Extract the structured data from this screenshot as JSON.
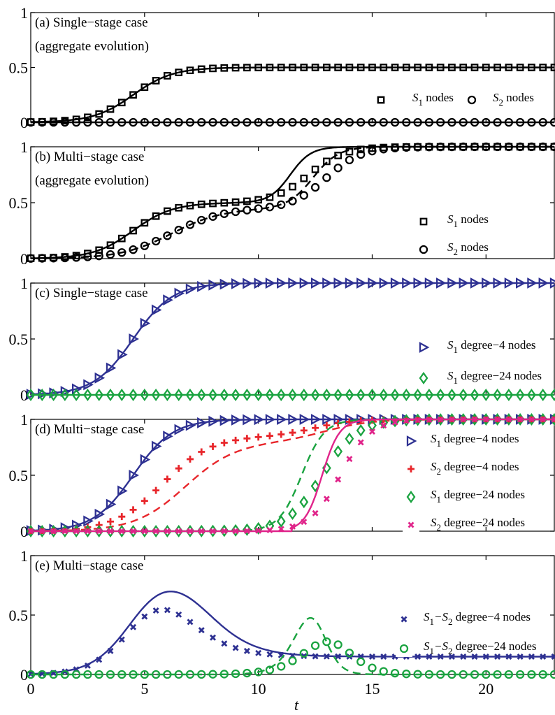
{
  "xlabel": "t",
  "xticks": [
    "0",
    "5",
    "10",
    "15",
    "20"
  ],
  "chart_data": [
    {
      "type": "line",
      "panel": "a",
      "title_lines": [
        "(a) Single−stage case",
        "(aggregate evolution)"
      ],
      "ylim": [
        0,
        1
      ],
      "xlim": [
        0,
        23
      ],
      "yticks": [
        "0",
        "0.5",
        "1"
      ],
      "legend": [
        {
          "name": "S1 nodes",
          "sym": "S",
          "sub": "1",
          "rest": " nodes",
          "marker": "square",
          "color": "#000000"
        },
        {
          "name": "S2 nodes",
          "sym": "S",
          "sub": "2",
          "rest": " nodes",
          "marker": "circle",
          "color": "#000000"
        }
      ],
      "series": [
        {
          "name": "S1 nodes",
          "marker": "square",
          "color": "#000000",
          "line": "solid",
          "fn": "logistic",
          "L": 0.5,
          "k": 1.15,
          "t0": 4.5
        },
        {
          "name": "S2 nodes",
          "marker": "circle",
          "color": "#000000",
          "line": "solid",
          "fn": "constant",
          "c": 0
        }
      ]
    },
    {
      "type": "line",
      "panel": "b",
      "title_lines": [
        "(b) Multi−stage case",
        "(aggregate evolution)"
      ],
      "ylim": [
        0,
        1
      ],
      "xlim": [
        0,
        23
      ],
      "yticks": [
        "0",
        "0.5",
        "1"
      ],
      "legend": [
        {
          "name": "S1 nodes",
          "sym": "S",
          "sub": "1",
          "rest": " nodes",
          "marker": "square",
          "color": "#000000"
        },
        {
          "name": "S2 nodes",
          "sym": "S",
          "sub": "2",
          "rest": " nodes",
          "marker": "circle",
          "color": "#000000"
        }
      ],
      "series": [
        {
          "name": "S1 nodes",
          "marker": "square",
          "color": "#000000",
          "line": "solid",
          "fn": "double",
          "A": 0.5,
          "k1": 1.15,
          "t1": 4.5,
          "B": 0.5,
          "k2": 1.3,
          "t2": 12.2,
          "line_k2": 2.2,
          "line_t2": 11.4
        },
        {
          "name": "S2 nodes",
          "marker": "circle",
          "color": "#000000",
          "line": "dashed",
          "fn": "double",
          "A": 0.45,
          "k1": 0.9,
          "t1": 6.2,
          "B": 0.55,
          "k2": 1.3,
          "t2": 13.0,
          "line_k2": 1.8,
          "line_t2": 12.4
        }
      ]
    },
    {
      "type": "line",
      "panel": "c",
      "title_lines": [
        "(c) Single−stage case"
      ],
      "ylim": [
        0,
        1
      ],
      "xlim": [
        0,
        23
      ],
      "yticks": [
        "0",
        "0.5",
        "1"
      ],
      "legend": [
        {
          "name": "S1 degree−4 nodes",
          "sym": "S",
          "sub": "1",
          "rest": " degree−4 nodes",
          "marker": "triangle",
          "color": "#2e3192"
        },
        {
          "name": "S1 degree−24 nodes",
          "sym": "S",
          "sub": "1",
          "rest": " degree−24 nodes",
          "marker": "diamond",
          "color": "#1aa340"
        }
      ],
      "series": [
        {
          "name": "S1 degree−4 nodes",
          "marker": "triangle",
          "color": "#2e3192",
          "line": "solid",
          "fn": "logistic",
          "L": 1.0,
          "k": 1.15,
          "t0": 4.5
        },
        {
          "name": "S1 degree−24 nodes",
          "marker": "diamond",
          "color": "#1aa340",
          "line": "solid",
          "fn": "constant",
          "c": 0
        }
      ]
    },
    {
      "type": "line",
      "panel": "d",
      "title_lines": [
        "(d) Multi−stage case"
      ],
      "ylim": [
        0,
        1
      ],
      "xlim": [
        0,
        23
      ],
      "yticks": [
        "0",
        "0.5",
        "1"
      ],
      "legend": [
        {
          "name": "S1 degree−4 nodes",
          "sym": "S",
          "sub": "1",
          "rest": " degree−4 nodes",
          "marker": "triangle",
          "color": "#2e3192"
        },
        {
          "name": "S2 degree−4 nodes",
          "sym": "S",
          "sub": "2",
          "rest": " degree−4 nodes",
          "marker": "plus",
          "color": "#e8262b"
        },
        {
          "name": "S1 degree−24 nodes",
          "sym": "S",
          "sub": "1",
          "rest": " degree−24 nodes",
          "marker": "diamond",
          "color": "#1aa340"
        },
        {
          "name": "S2 degree−24 nodes",
          "sym": "S",
          "sub": "2",
          "rest": " degree−24 nodes",
          "marker": "cross",
          "color": "#e0248a"
        }
      ],
      "series": [
        {
          "name": "S1 degree−4 nodes",
          "marker": "triangle",
          "color": "#2e3192",
          "line": "solid",
          "fn": "logistic",
          "L": 1.0,
          "k": 1.15,
          "t0": 4.5
        },
        {
          "name": "S2 degree−4 nodes",
          "marker": "plus",
          "color": "#e8262b",
          "line": "dashed",
          "fn": "double",
          "A": 0.85,
          "k1": 0.95,
          "t1": 5.8,
          "B": 0.15,
          "k2": 1.2,
          "t2": 12.5,
          "line_A": 0.8,
          "line_k1": 0.9,
          "line_t1": 6.8,
          "line_B": 0.2,
          "line_k2": 1.0,
          "line_t2": 13.0
        },
        {
          "name": "S1 degree−24 nodes",
          "marker": "diamond",
          "color": "#1aa340",
          "line": "dashed",
          "fn": "logistic",
          "L": 1.0,
          "k": 1.3,
          "t0": 12.8,
          "line_L": 1.0,
          "line_k": 2.0,
          "line_t0": 11.9
        },
        {
          "name": "S2 degree−24 nodes",
          "marker": "cross",
          "color": "#e0248a",
          "line": "solid",
          "fn": "logistic",
          "L": 1.0,
          "k": 1.5,
          "t0": 13.6,
          "line_L": 1.0,
          "line_k": 2.6,
          "line_t0": 12.8,
          "min_t": 11.5
        }
      ]
    },
    {
      "type": "line",
      "panel": "e",
      "title_lines": [
        "(e) Multi−stage case"
      ],
      "ylim": [
        0,
        1
      ],
      "xlim": [
        0,
        23
      ],
      "yticks": [
        "0",
        "0.5",
        "1"
      ],
      "legend": [
        {
          "name": "S1−S2 degree−4 nodes",
          "sym": "S",
          "sub": "1",
          "mid": "−S",
          "sub2": "2",
          "rest": " degree−4 nodes",
          "marker": "cross",
          "color": "#2e3192"
        },
        {
          "name": "S1−S2 degree−24 nodes",
          "sym": "S",
          "sub": "1",
          "mid": "−S",
          "sub2": "2",
          "rest": " degree−24 nodes",
          "marker": "circle",
          "color": "#1aa340"
        }
      ],
      "series": [
        {
          "name": "S1−S2 degree−4 nodes",
          "marker": "cross",
          "color": "#2e3192",
          "line": "solid",
          "fn": "diff",
          "a": {
            "L": 1.0,
            "k": 1.15,
            "t0": 4.5
          },
          "b": {
            "L": 0.85,
            "k": 0.95,
            "t0": 6.6
          },
          "line_a": {
            "L": 1.0,
            "k": 1.15,
            "t0": 4.5
          },
          "line_b": {
            "L": 0.85,
            "k": 0.95,
            "t0": 7.6
          }
        },
        {
          "name": "S1−S2 degree−24 nodes",
          "marker": "circle",
          "color": "#1aa340",
          "line": "dashed",
          "fn": "diff",
          "a": {
            "L": 1.0,
            "k": 1.3,
            "t0": 12.8
          },
          "b": {
            "L": 1.0,
            "k": 1.5,
            "t0": 13.6
          },
          "line_a": {
            "L": 1.0,
            "k": 2.0,
            "t0": 11.9
          },
          "line_b": {
            "L": 1.0,
            "k": 2.6,
            "t0": 12.8
          }
        }
      ]
    }
  ]
}
